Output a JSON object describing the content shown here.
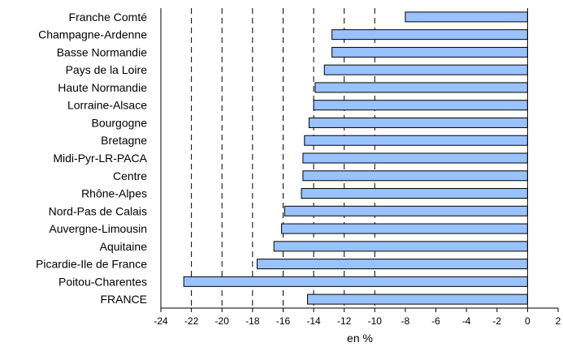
{
  "chart_data": {
    "type": "bar",
    "orientation": "horizontal",
    "title": "",
    "xlabel": "en %",
    "ylabel": "",
    "xlim": [
      -24,
      2
    ],
    "x_ticks": [
      -24,
      -22,
      -20,
      -18,
      -16,
      -14,
      -12,
      -10,
      -8,
      -6,
      -4,
      -2,
      0,
      2
    ],
    "grid": {
      "style": "dashed",
      "vertical_at": [
        -22,
        -20,
        -18,
        -16,
        -14,
        -12,
        -10
      ]
    },
    "bar_color": "#99c2ff",
    "bar_edge_color": "#000000",
    "categories": [
      "Franche Comté",
      "Champagne-Ardenne",
      "Basse Normandie",
      "Pays de la Loire",
      "Haute Normandie",
      "Lorraine-Alsace",
      "Bourgogne",
      "Bretagne",
      "Midi-Pyr-LR-PACA",
      "Centre",
      "Rhône-Alpes",
      "Nord-Pas de Calais",
      "Auvergne-Limousin",
      "Aquitaine",
      "Picardie-Ile de France",
      "Poitou-Charentes",
      "FRANCE"
    ],
    "values": [
      -8.0,
      -12.8,
      -12.8,
      -13.3,
      -13.9,
      -14.0,
      -14.3,
      -14.6,
      -14.7,
      -14.7,
      -14.8,
      -15.9,
      -16.1,
      -16.6,
      -17.7,
      -22.5,
      -14.4
    ]
  }
}
